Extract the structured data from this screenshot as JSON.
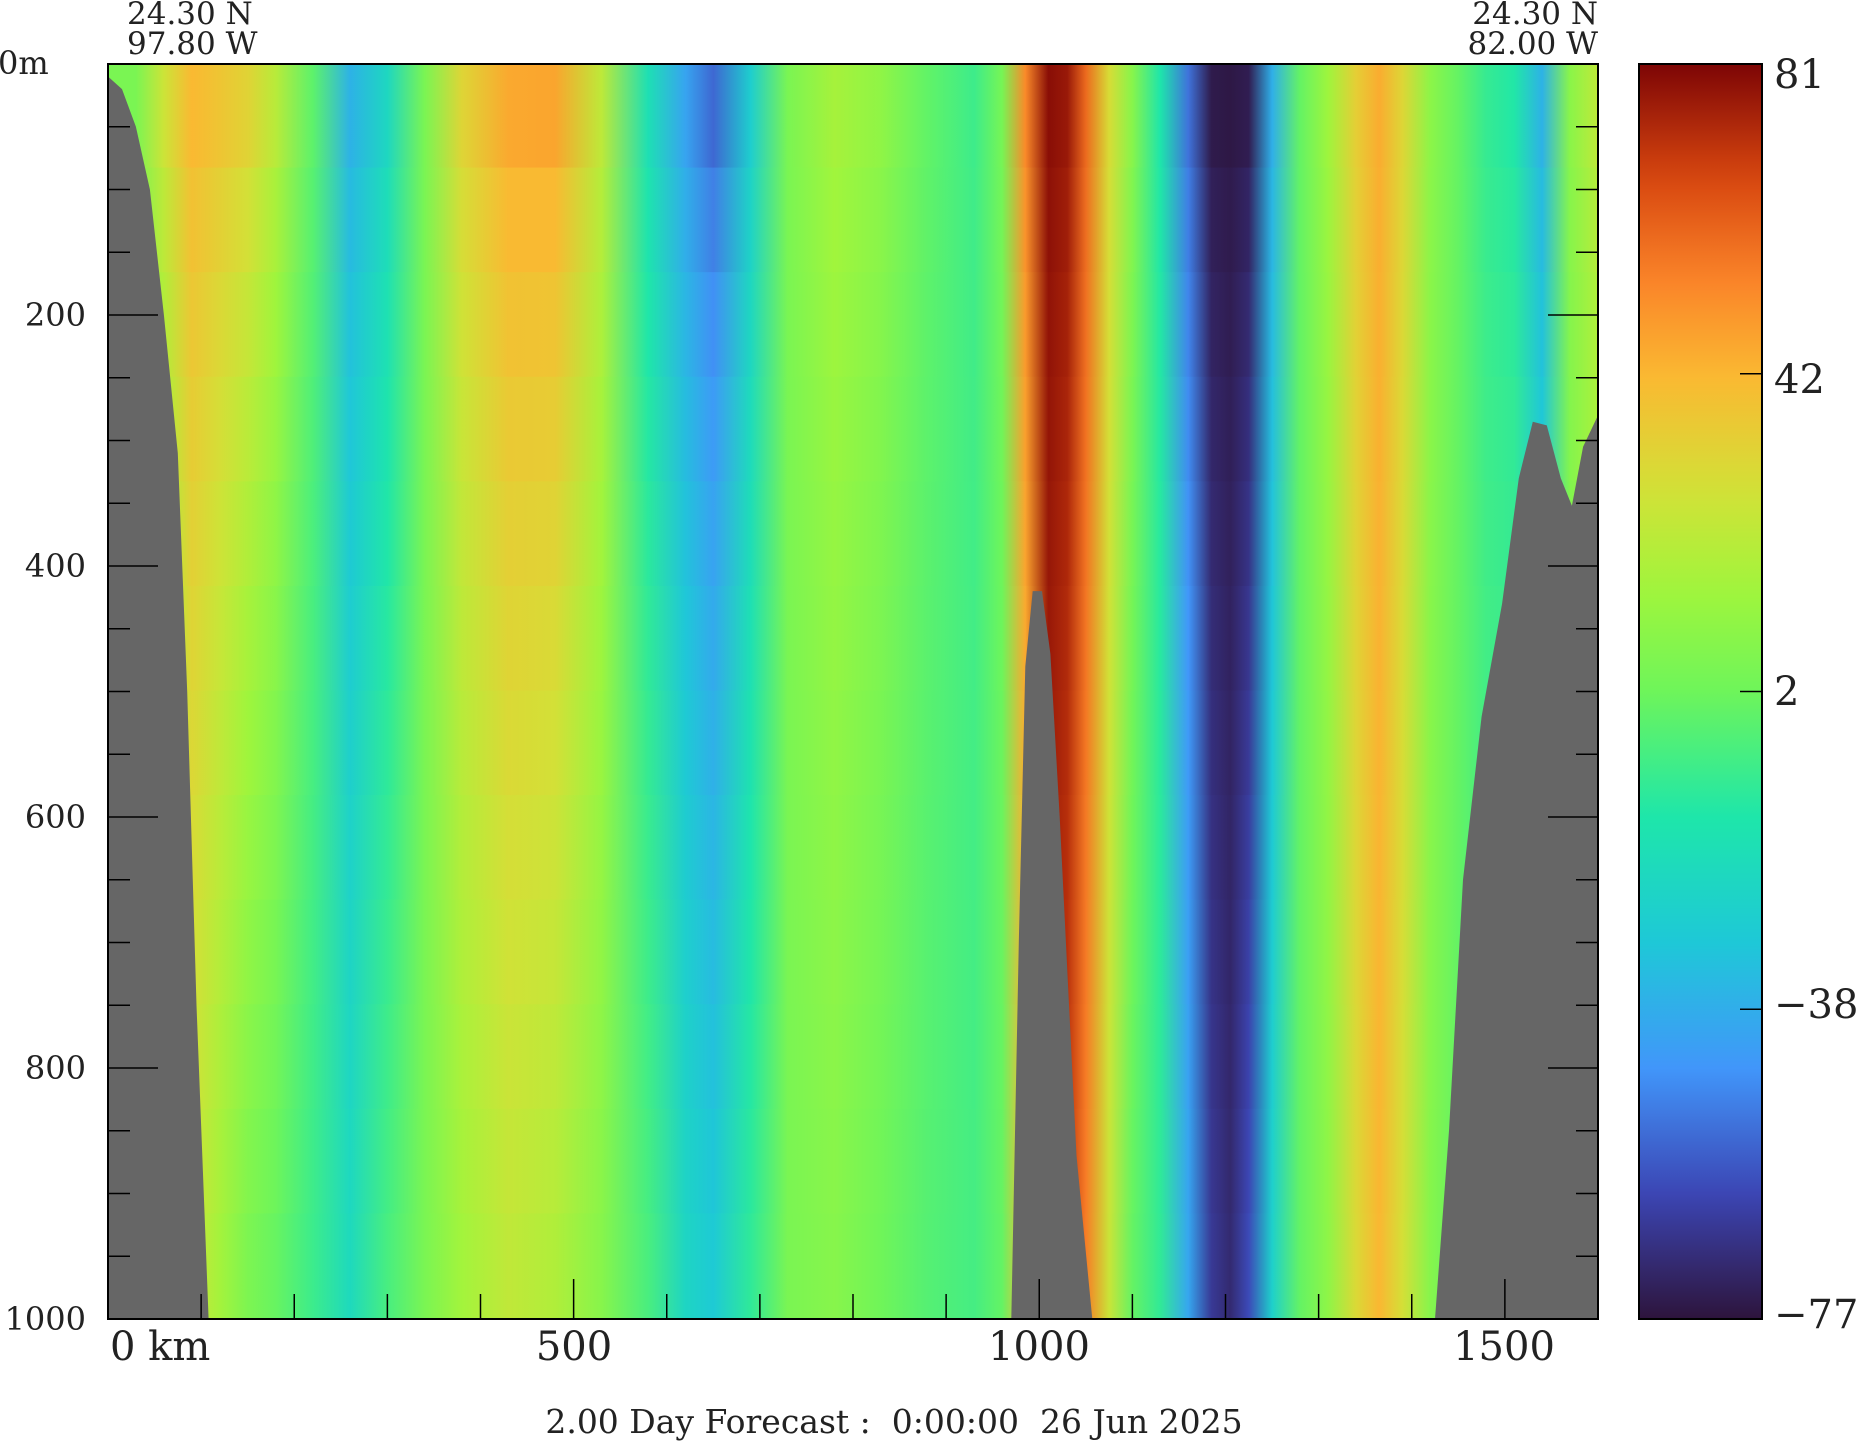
{
  "chart_data": {
    "type": "heatmap",
    "title": "",
    "caption": "2.00 Day Forecast :  0:00:00  26 Jun 2025",
    "section": {
      "start": {
        "lat": "24.30 N",
        "lon": "97.80 W"
      },
      "end": {
        "lat": "24.30 N",
        "lon": "82.00 W"
      }
    },
    "x_axis": {
      "range": [
        0,
        1600
      ],
      "ticks": [
        0,
        500,
        1000,
        1500
      ],
      "tick_labels": [
        "0 km",
        "500",
        "1000",
        "1500"
      ],
      "minor_step": 100
    },
    "y_axis": {
      "range": [
        0,
        1000
      ],
      "inverted": true,
      "ticks": [
        0,
        200,
        400,
        600,
        800,
        1000
      ],
      "tick_labels": [
        "0m",
        "200",
        "400",
        "600",
        "800",
        "1000"
      ],
      "minor_step": 50
    },
    "colorbar": {
      "min": -77,
      "max": 81,
      "ticks": [
        81,
        42,
        2,
        -38,
        -77
      ],
      "tick_labels": [
        "81",
        "42",
        "2",
        "−38",
        "−77"
      ]
    },
    "field_columns": [
      {
        "x": 10,
        "surface": 5,
        "deep": 5
      },
      {
        "x": 30,
        "surface": 5,
        "deep": 5
      },
      {
        "x": 60,
        "surface": 30,
        "deep": 5
      },
      {
        "x": 90,
        "surface": 45,
        "deep": 25
      },
      {
        "x": 120,
        "surface": 42,
        "deep": 15
      },
      {
        "x": 150,
        "surface": 38,
        "deep": 5
      },
      {
        "x": 180,
        "surface": 25,
        "deep": 0
      },
      {
        "x": 220,
        "surface": 0,
        "deep": -8
      },
      {
        "x": 260,
        "surface": -40,
        "deep": -20
      },
      {
        "x": 300,
        "surface": -25,
        "deep": -5
      },
      {
        "x": 340,
        "surface": 5,
        "deep": 5
      },
      {
        "x": 380,
        "surface": 35,
        "deep": 15
      },
      {
        "x": 430,
        "surface": 50,
        "deep": 22
      },
      {
        "x": 480,
        "surface": 52,
        "deep": 18
      },
      {
        "x": 530,
        "surface": 25,
        "deep": 8
      },
      {
        "x": 580,
        "surface": -20,
        "deep": -5
      },
      {
        "x": 620,
        "surface": -45,
        "deep": -22
      },
      {
        "x": 650,
        "surface": -60,
        "deep": -28
      },
      {
        "x": 690,
        "surface": -30,
        "deep": -10
      },
      {
        "x": 730,
        "surface": 5,
        "deep": 5
      },
      {
        "x": 780,
        "surface": 18,
        "deep": 8
      },
      {
        "x": 830,
        "surface": 12,
        "deep": 2
      },
      {
        "x": 880,
        "surface": 0,
        "deep": -3
      },
      {
        "x": 930,
        "surface": -8,
        "deep": -6
      },
      {
        "x": 960,
        "surface": 5,
        "deep": 0
      },
      {
        "x": 985,
        "surface": 55,
        "deep": 40
      },
      {
        "x": 1010,
        "surface": 80,
        "deep": 75
      },
      {
        "x": 1030,
        "surface": 78,
        "deep": 70
      },
      {
        "x": 1050,
        "surface": 60,
        "deep": 55
      },
      {
        "x": 1075,
        "surface": 30,
        "deep": 25
      },
      {
        "x": 1100,
        "surface": 10,
        "deep": 0
      },
      {
        "x": 1130,
        "surface": -15,
        "deep": -10
      },
      {
        "x": 1160,
        "surface": -55,
        "deep": -40
      },
      {
        "x": 1185,
        "surface": -77,
        "deep": -65
      },
      {
        "x": 1205,
        "surface": -77,
        "deep": -70
      },
      {
        "x": 1225,
        "surface": -77,
        "deep": -60
      },
      {
        "x": 1250,
        "surface": -40,
        "deep": -25
      },
      {
        "x": 1280,
        "surface": 0,
        "deep": 0
      },
      {
        "x": 1310,
        "surface": 15,
        "deep": 10
      },
      {
        "x": 1340,
        "surface": 35,
        "deep": 30
      },
      {
        "x": 1365,
        "surface": 45,
        "deep": 42
      },
      {
        "x": 1390,
        "surface": 32,
        "deep": 28
      },
      {
        "x": 1420,
        "surface": 10,
        "deep": 8
      },
      {
        "x": 1450,
        "surface": 0,
        "deep": 0
      },
      {
        "x": 1480,
        "surface": -10,
        "deep": -5
      },
      {
        "x": 1510,
        "surface": -15,
        "deep": -5
      },
      {
        "x": 1540,
        "surface": -40,
        "deep": -20
      },
      {
        "x": 1570,
        "surface": 10,
        "deep": 5
      },
      {
        "x": 1600,
        "surface": 25,
        "deep": 10
      }
    ],
    "bathymetry": [
      {
        "x": 0,
        "depth": 10
      },
      {
        "x": 15,
        "depth": 20
      },
      {
        "x": 30,
        "depth": 50
      },
      {
        "x": 45,
        "depth": 100
      },
      {
        "x": 60,
        "depth": 200
      },
      {
        "x": 75,
        "depth": 310
      },
      {
        "x": 85,
        "depth": 500
      },
      {
        "x": 95,
        "depth": 750
      },
      {
        "x": 108,
        "depth": 1000
      },
      {
        "x": 970,
        "depth": 1000
      },
      {
        "x": 978,
        "depth": 700
      },
      {
        "x": 985,
        "depth": 480
      },
      {
        "x": 993,
        "depth": 420
      },
      {
        "x": 1003,
        "depth": 420
      },
      {
        "x": 1012,
        "depth": 470
      },
      {
        "x": 1022,
        "depth": 600
      },
      {
        "x": 1040,
        "depth": 870
      },
      {
        "x": 1057,
        "depth": 1000
      },
      {
        "x": 1425,
        "depth": 1000
      },
      {
        "x": 1440,
        "depth": 850
      },
      {
        "x": 1455,
        "depth": 650
      },
      {
        "x": 1475,
        "depth": 520
      },
      {
        "x": 1497,
        "depth": 430
      },
      {
        "x": 1515,
        "depth": 330
      },
      {
        "x": 1530,
        "depth": 285
      },
      {
        "x": 1545,
        "depth": 288
      },
      {
        "x": 1560,
        "depth": 330
      },
      {
        "x": 1572,
        "depth": 352
      },
      {
        "x": 1584,
        "depth": 305
      },
      {
        "x": 1600,
        "depth": 280
      }
    ]
  }
}
